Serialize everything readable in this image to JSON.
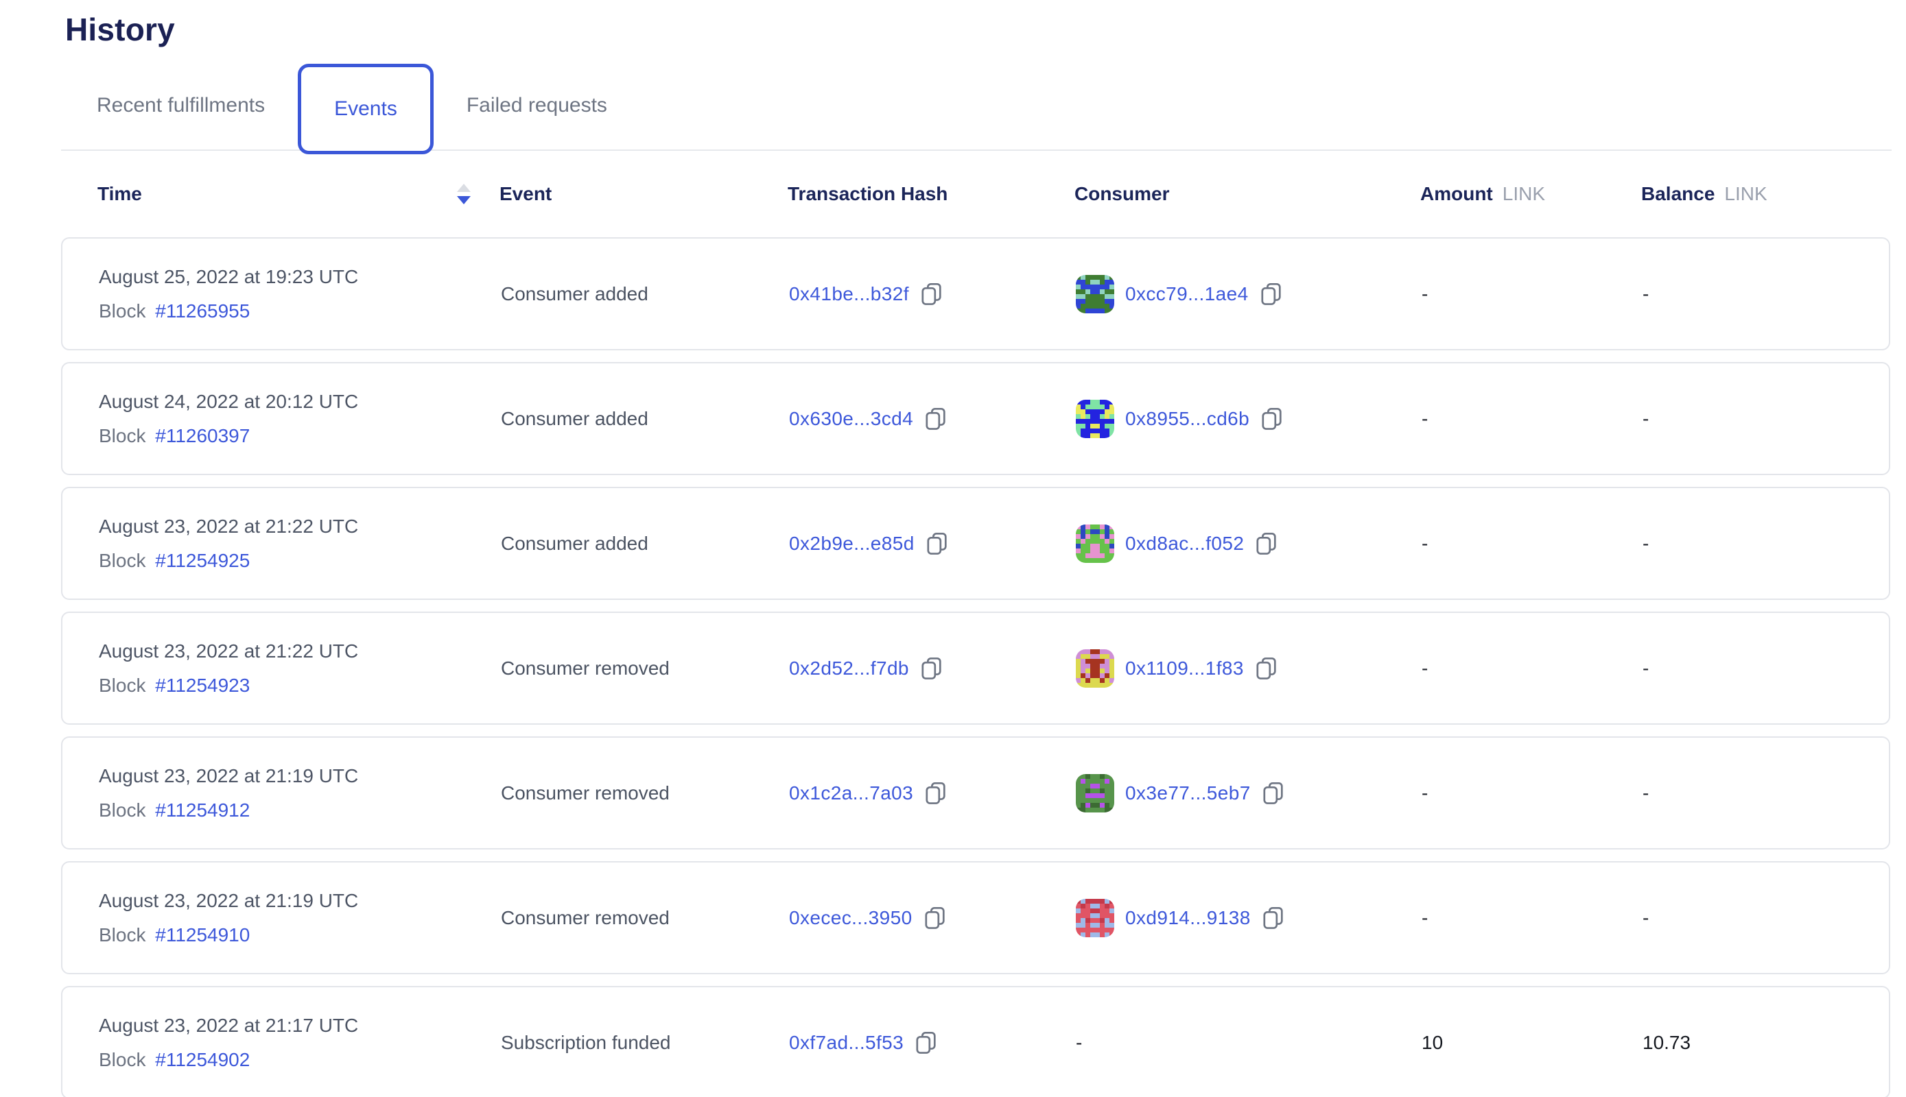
{
  "page": {
    "title": "History"
  },
  "tabs": [
    {
      "label": "Recent fulfillments",
      "active": false
    },
    {
      "label": "Events",
      "active": true
    },
    {
      "label": "Failed requests",
      "active": false
    }
  ],
  "colors": {
    "accent_blue": "#3b57d8",
    "link_blue": "#3d58da",
    "heading_navy": "#1b2559",
    "text_gray": "#4b5362",
    "muted_gray": "#9aa0ad",
    "border_gray": "#e3e5ea"
  },
  "table": {
    "columns": {
      "time": "Time",
      "event": "Event",
      "tx": "Transaction Hash",
      "consumer": "Consumer",
      "amount": "Amount",
      "balance": "Balance",
      "unit": "LINK"
    },
    "sort": {
      "column": "time",
      "direction": "descending"
    },
    "block_label": "Block",
    "rows": [
      {
        "date": "August 25, 2022 at 19:23 UTC",
        "block": "#11265955",
        "event": "Consumer added",
        "tx": "0x41be...b32f",
        "consumer": "0xcc79...1ae4",
        "avatar": {
          "c1": "#3f7d32",
          "c2": "#2f45d4",
          "c3": "#8fd4c0"
        },
        "amount": "-",
        "balance": "-"
      },
      {
        "date": "August 24, 2022 at 20:12 UTC",
        "block": "#11260397",
        "event": "Consumer added",
        "tx": "0x630e...3cd4",
        "consumer": "0x8955...cd6b",
        "avatar": {
          "c1": "#2323e0",
          "c2": "#eaea5e",
          "c3": "#7fe3a5"
        },
        "amount": "-",
        "balance": "-"
      },
      {
        "date": "August 23, 2022 at 21:22 UTC",
        "block": "#11254925",
        "event": "Consumer added",
        "tx": "0x2b9e...e85d",
        "consumer": "0xd8ac...f052",
        "avatar": {
          "c1": "#66c24a",
          "c2": "#e693cf",
          "c3": "#2b49c1"
        },
        "amount": "-",
        "balance": "-"
      },
      {
        "date": "August 23, 2022 at 21:22 UTC",
        "block": "#11254923",
        "event": "Consumer removed",
        "tx": "0x2d52...f7db",
        "consumer": "0x1109...1f83",
        "avatar": {
          "c1": "#cf8fd6",
          "c2": "#dcd94f",
          "c3": "#a63420"
        },
        "amount": "-",
        "balance": "-"
      },
      {
        "date": "August 23, 2022 at 21:19 UTC",
        "block": "#11254912",
        "event": "Consumer removed",
        "tx": "0x1c2a...7a03",
        "consumer": "0x3e77...5eb7",
        "avatar": {
          "c1": "#57944b",
          "c2": "#b553e8",
          "c3": "#3c6b33"
        },
        "amount": "-",
        "balance": "-"
      },
      {
        "date": "August 23, 2022 at 21:19 UTC",
        "block": "#11254910",
        "event": "Consumer removed",
        "tx": "0xecec...3950",
        "consumer": "0xd914...9138",
        "avatar": {
          "c1": "#e05565",
          "c2": "#9fb9e8",
          "c3": "#c43a4b"
        },
        "amount": "-",
        "balance": "-"
      },
      {
        "date": "August 23, 2022 at 21:17 UTC",
        "block": "#11254902",
        "event": "Subscription funded",
        "tx": "0xf7ad...5f53",
        "consumer": "-",
        "avatar": null,
        "amount": "10",
        "balance": "10.73"
      }
    ]
  }
}
